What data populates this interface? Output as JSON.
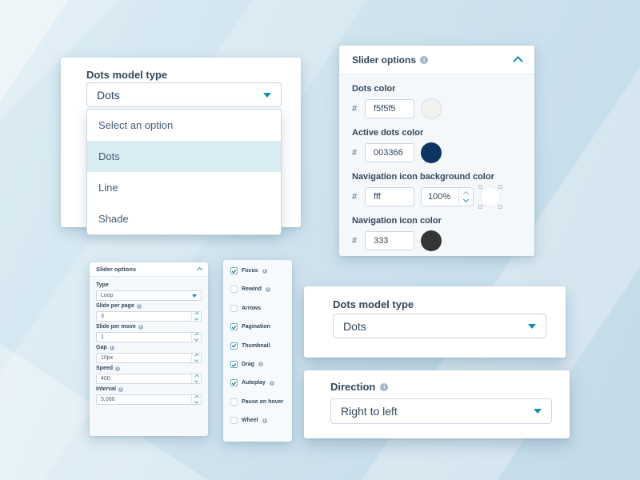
{
  "colors": {
    "accent_teal": "#0f8eb3",
    "label_navy": "#33475b",
    "option_highlight_bg": "#d9ecf2",
    "panel_body_bg": "#f5f8fa",
    "input_border": "#cbd6e2",
    "background_base": "#cfe3ee"
  },
  "dots_model_open_card": {
    "label": "Dots model type",
    "select_value": "Dots",
    "dropdown_options": [
      {
        "label": "Select an option",
        "selected": false
      },
      {
        "label": "Dots",
        "selected": true
      },
      {
        "label": "Line",
        "selected": false
      },
      {
        "label": "Shade",
        "selected": false
      }
    ]
  },
  "slider_options_panel": {
    "title": "Slider options",
    "fields": [
      {
        "label": "Dots color",
        "hash": "#",
        "value": "f5f5f5",
        "swatch_color": "#f2f2f1"
      },
      {
        "label": "Active dots color",
        "hash": "#",
        "value": "003366",
        "swatch_color": "#0e3462"
      },
      {
        "label": "Navigation icon background color",
        "hash": "#",
        "value": "fff",
        "opacity_value": "100%",
        "swatch_color": "#ffffff"
      },
      {
        "label": "Navigation icon color",
        "hash": "#",
        "value": "333",
        "swatch_color": "#353535"
      }
    ]
  },
  "slider_options_mini_panel": {
    "title": "Slider options",
    "fields": [
      {
        "label": "Type",
        "value": "Loop",
        "control": "select"
      },
      {
        "label": "Slide per page",
        "value": "3",
        "control": "stepper"
      },
      {
        "label": "Slide per move",
        "value": "1",
        "control": "stepper"
      },
      {
        "label": "Gap",
        "value": "10px",
        "control": "stepper"
      },
      {
        "label": "Speed",
        "value": "400",
        "control": "stepper"
      },
      {
        "label": "Interval",
        "value": "5,000",
        "control": "stepper"
      }
    ]
  },
  "checkbox_panel": {
    "items": [
      {
        "label": "Focus",
        "checked": true,
        "has_info": true
      },
      {
        "label": "Rewind",
        "checked": false,
        "has_info": true
      },
      {
        "label": "Arrows",
        "checked": false,
        "has_info": false
      },
      {
        "label": "Pagination",
        "checked": true,
        "has_info": false
      },
      {
        "label": "Thumbnail",
        "checked": true,
        "has_info": false
      },
      {
        "label": "Drag",
        "checked": true,
        "has_info": true
      },
      {
        "label": "Autoplay",
        "checked": true,
        "has_info": true
      },
      {
        "label": "Pause on hover",
        "checked": false,
        "has_info": false
      },
      {
        "label": "Wheel",
        "checked": false,
        "has_info": true
      }
    ]
  },
  "dots_model_card": {
    "label": "Dots model type",
    "select_value": "Dots"
  },
  "direction_card": {
    "label": "Direction",
    "select_value": "Right to left"
  }
}
